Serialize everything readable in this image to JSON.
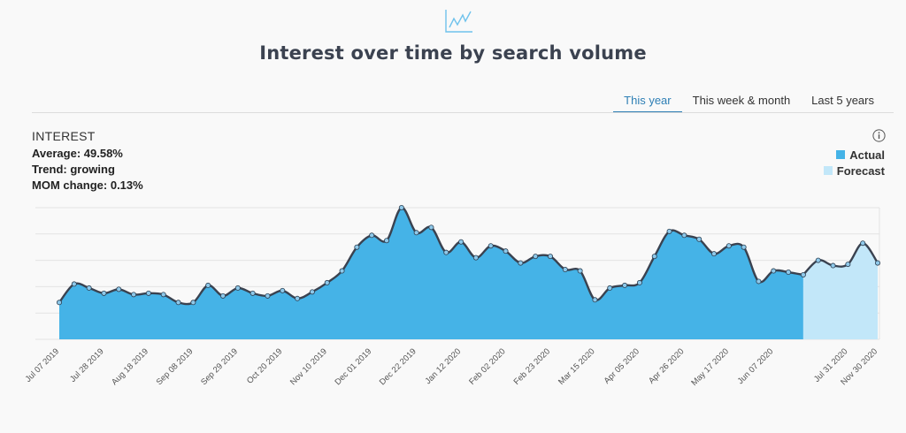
{
  "header": {
    "icon": "line-chart-icon",
    "title": "Interest over time by search volume"
  },
  "tabs": [
    {
      "label": "This year",
      "active": true
    },
    {
      "label": "This week & month",
      "active": false
    },
    {
      "label": "Last 5 years",
      "active": false
    }
  ],
  "stats": {
    "heading": "INTEREST",
    "average": "Average: 49.58%",
    "trend": "Trend: growing",
    "mom_change": "MOM change: 0.13%"
  },
  "info_icon": "info-icon",
  "legend": [
    {
      "label": "Actual",
      "color": "#45b3e7"
    },
    {
      "label": "Forecast",
      "color": "#c2e7f9"
    }
  ],
  "colors": {
    "actual_fill": "#45b3e7",
    "forecast_fill": "#c2e7f9",
    "line": "#3a4250",
    "point": "#8fc9ea",
    "active_tab": "#2e7fb5"
  },
  "chart_data": {
    "type": "area",
    "grid": true,
    "ylim": [
      0,
      100
    ],
    "x_tick_labels": [
      "Jul 07 2019",
      "Jul 28 2019",
      "Aug 18 2019",
      "Sep 08 2019",
      "Sep 29 2019",
      "Oct 20 2019",
      "Nov 10 2019",
      "Dec 01 2019",
      "Dec 22 2019",
      "Jan 12 2020",
      "Feb 02 2020",
      "Feb 23 2020",
      "Mar 15 2020",
      "Apr 05 2020",
      "Apr 26 2020",
      "May 17 2020",
      "Jun 07 2020",
      "Jul 31 2020",
      "Nov 30 2020"
    ],
    "series": [
      {
        "name": "Actual",
        "values": [
          28,
          42,
          39,
          35,
          38,
          34,
          35,
          34,
          28,
          28,
          41,
          33,
          39,
          35,
          33,
          37,
          31,
          36,
          43,
          52,
          70,
          79,
          75,
          100,
          81,
          85,
          66,
          74,
          62,
          71,
          67,
          58,
          63,
          63,
          53,
          52,
          30,
          39,
          41,
          43,
          63,
          82,
          79,
          76,
          65,
          71,
          70,
          44,
          52,
          51,
          49
        ]
      },
      {
        "name": "Forecast",
        "values": [
          49,
          60,
          56,
          57,
          73,
          58
        ]
      }
    ]
  }
}
